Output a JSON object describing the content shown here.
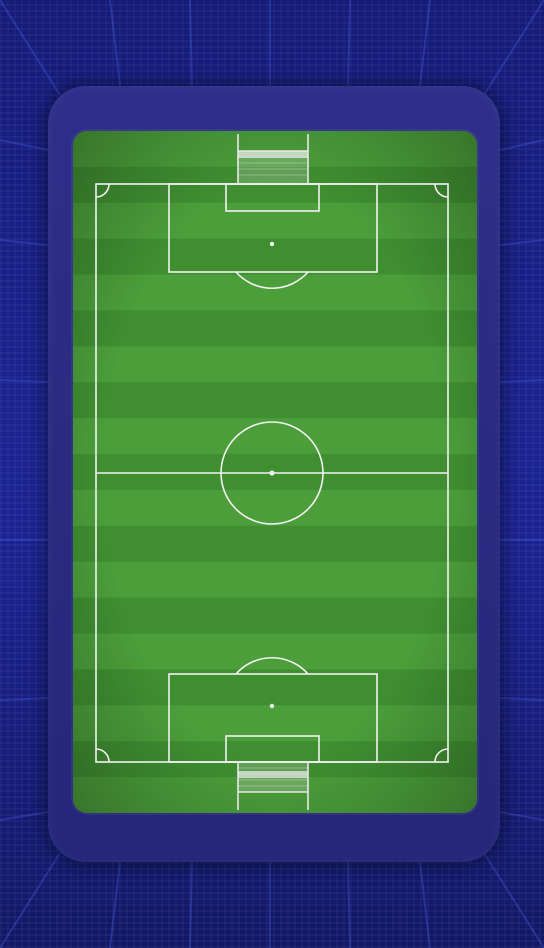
{
  "scene": {
    "name": "football-pitch-top-view",
    "colors": {
      "stadium_dark": "#121866",
      "stadium_mid": "#1b2393",
      "frame": "#2b2b82",
      "grass_light": "#4b9e3a",
      "grass_dark": "#3f8f31",
      "lines": "#f2f2f2"
    },
    "pitch": {
      "stripes": 19,
      "has_center_circle": true,
      "has_center_spot": true,
      "has_penalty_spots": true,
      "has_corner_arcs": true,
      "goals": [
        "top",
        "bottom"
      ]
    }
  }
}
